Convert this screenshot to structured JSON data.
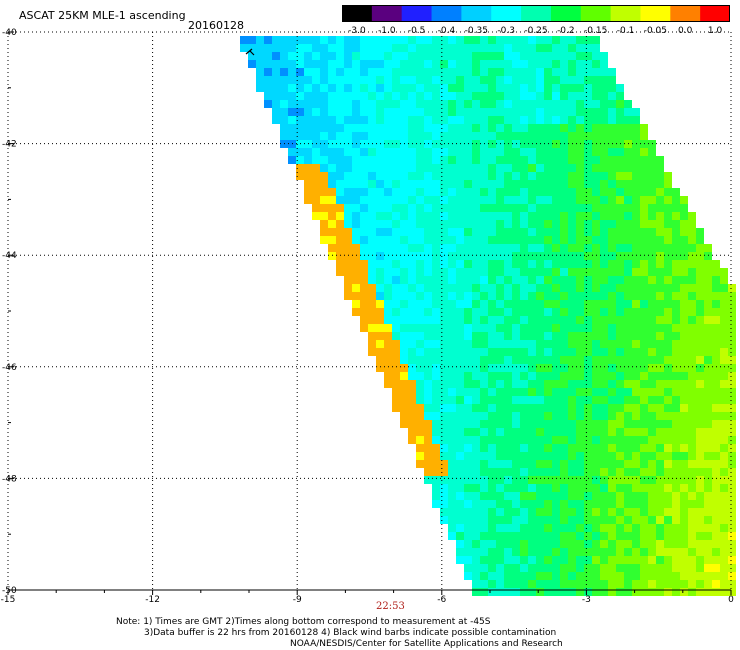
{
  "header": {
    "title": "ASCAT 25KM MLE-1 ascending",
    "date": "20160128"
  },
  "colorbar": {
    "labels": [
      "-3.0",
      "-1.0",
      "-0.5",
      "-0.4",
      "-0.35",
      "-0.3",
      "-0.25",
      "-0.2",
      "-0.15",
      "-0.1",
      "-0.05",
      "0.0",
      "1.0"
    ],
    "colors": [
      "#000000",
      "#5a007f",
      "#2020ff",
      "#0080ff",
      "#00d0ff",
      "#00ffff",
      "#00ffb0",
      "#00ff40",
      "#60ff00",
      "#c0ff00",
      "#ffff00",
      "#ff8000",
      "#ff0000"
    ]
  },
  "map": {
    "lat_labels": [
      "-40",
      "-42",
      "-44",
      "-46",
      "-48",
      "-50"
    ],
    "lon_labels": [
      "-15",
      "-12",
      "-9",
      "-6",
      "-3",
      "0"
    ],
    "lat_range": [
      -50,
      -40
    ],
    "lon_range": [
      -15,
      0
    ],
    "swath_time": "22:53",
    "barb_color": "#000000"
  },
  "notes": {
    "line1": "Note: 1) Times are GMT 2)Times along bottom correspond to measurement at -45S",
    "line2": "3)Data buffer is 22 hrs from 20160128 4) Black wind barbs indicate possible contamination",
    "line3": "NOAA/NESDIS/Center for Satellite Applications and Research"
  }
}
